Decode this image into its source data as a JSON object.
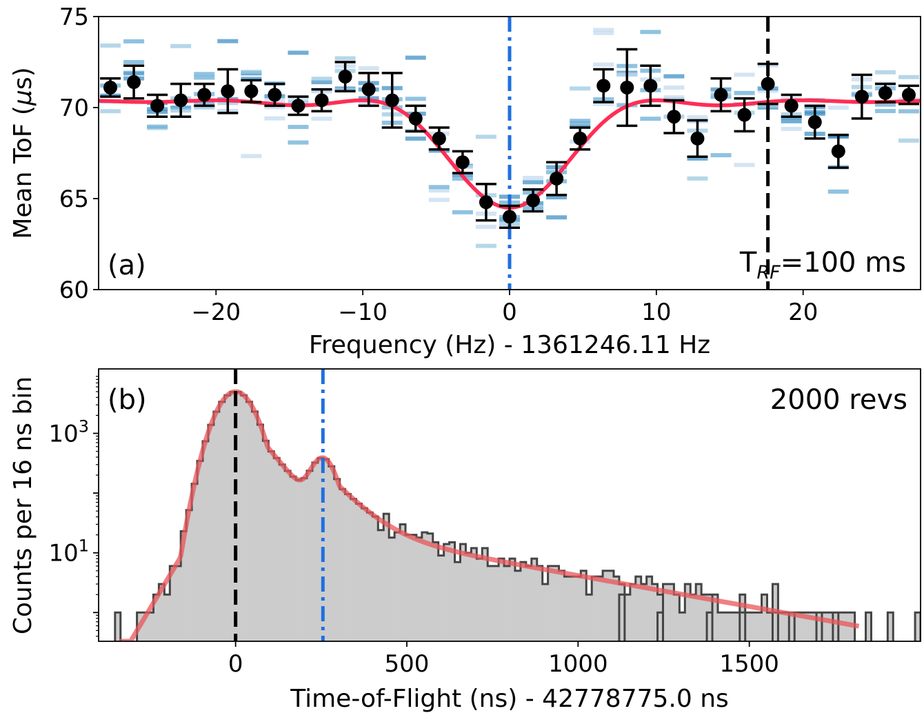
{
  "chart_data": [
    {
      "type": "scatter",
      "panel_label": "(a)",
      "annotation": "T",
      "annotation_sub": "RF",
      "annotation_rest": "=100 ms",
      "xlabel": "Frequency (Hz) - 1361246.11 Hz",
      "ylabel_main": "Mean ToF (",
      "ylabel_mu": "μ",
      "ylabel_tail": "s)",
      "xlim": [
        -28,
        28
      ],
      "ylim": [
        60,
        75
      ],
      "xticks": [
        -20,
        -10,
        0,
        10,
        20
      ],
      "xtick_labels": [
        "−20",
        "−10",
        "0",
        "10",
        "20"
      ],
      "yticks": [
        60,
        65,
        70,
        75
      ],
      "ytick_labels": [
        "60",
        "65",
        "70",
        "75"
      ],
      "grid": false,
      "series": [
        {
          "kind": "errorbar",
          "x": [
            -27.2,
            -25.6,
            -24.0,
            -22.4,
            -20.8,
            -19.2,
            -17.6,
            -16.0,
            -14.4,
            -12.8,
            -11.2,
            -9.6,
            -8.0,
            -6.4,
            -4.8,
            -3.2,
            -1.6,
            0.0,
            1.6,
            3.2,
            4.8,
            6.4,
            8.0,
            9.6,
            11.2,
            12.8,
            14.4,
            16.0,
            17.6,
            19.2,
            20.8,
            22.4,
            24.0,
            25.6,
            27.2
          ],
          "y": [
            71.1,
            71.4,
            70.1,
            70.4,
            70.7,
            70.9,
            70.9,
            70.7,
            70.1,
            70.4,
            71.7,
            71.0,
            70.4,
            69.4,
            68.3,
            67.0,
            64.8,
            64.0,
            64.9,
            66.1,
            68.3,
            71.2,
            71.1,
            71.2,
            69.5,
            68.3,
            70.7,
            69.6,
            71.3,
            70.1,
            69.2,
            67.6,
            70.6,
            70.8,
            70.7
          ],
          "yerr": [
            0.5,
            0.9,
            0.6,
            0.9,
            0.6,
            1.2,
            0.6,
            0.6,
            0.5,
            0.6,
            0.8,
            0.9,
            1.5,
            0.7,
            0.6,
            0.6,
            1.0,
            0.6,
            0.6,
            0.9,
            0.6,
            0.9,
            2.1,
            1.1,
            0.9,
            1.0,
            0.9,
            0.9,
            1.1,
            0.6,
            0.9,
            0.9,
            1.2,
            0.5,
            0.5
          ],
          "color": "#000000"
        },
        {
          "kind": "fit-line",
          "model": "sinc-dip",
          "baseline": 70.4,
          "depth": 5.9,
          "width_hz": 10.0,
          "color": "#ff2d55"
        }
      ],
      "reference_lines": [
        {
          "x": 0.0,
          "style": "dashdot",
          "color": "#1f6fe0"
        },
        {
          "x": 17.6,
          "style": "dashed",
          "color": "#000000"
        }
      ],
      "background_colors": [
        "#c6dbef",
        "#9ecae1",
        "#6baed6",
        "#4292c6"
      ]
    },
    {
      "type": "histogram",
      "panel_label": "(b)",
      "annotation": "2000 revs",
      "xlabel": "Time-of-Flight (ns) - 42778775.0 ns",
      "ylabel": "Counts per 16 ns bin",
      "xlim": [
        -400,
        2000
      ],
      "ylim": [
        0.33,
        12000
      ],
      "yscale": "log",
      "bin_width": 16,
      "xticks": [
        0,
        500,
        1000,
        1500
      ],
      "xtick_labels": [
        "0",
        "500",
        "1000",
        "1500"
      ],
      "yticks": [
        10,
        1000
      ],
      "ytick_labels": [
        {
          "base": "10",
          "exp": "1"
        },
        {
          "base": "10",
          "exp": "3"
        }
      ],
      "grid": false,
      "fit": {
        "peaks": [
          {
            "center": 0,
            "amplitude": 5000,
            "sigma": 45,
            "tail_decay": 60
          },
          {
            "center": 255,
            "amplitude": 330,
            "sigma": 30,
            "tail_decay": 70
          }
        ],
        "left_slope": 45,
        "background_amplitude": 22,
        "background_decay": 420,
        "color": "#e8555a"
      },
      "sparse_counts": [
        {
          "x": -352,
          "count": 1
        },
        {
          "x": 1120,
          "count": 2
        },
        {
          "x": 1232,
          "count": 1
        },
        {
          "x": 1376,
          "count": 1
        },
        {
          "x": 1472,
          "count": 1
        },
        {
          "x": 1568,
          "count": 3
        },
        {
          "x": 1616,
          "count": 1
        },
        {
          "x": 1696,
          "count": 1
        },
        {
          "x": 1744,
          "count": 1
        },
        {
          "x": 1840,
          "count": 1
        },
        {
          "x": 1904,
          "count": 1
        },
        {
          "x": 1984,
          "count": 1
        }
      ],
      "hist_fill": "#cccccc",
      "hist_edge": "#444444",
      "reference_lines": [
        {
          "x": 0,
          "style": "dashed",
          "color": "#000000"
        },
        {
          "x": 255,
          "style": "dashdot",
          "color": "#1f6fe0"
        }
      ]
    }
  ]
}
